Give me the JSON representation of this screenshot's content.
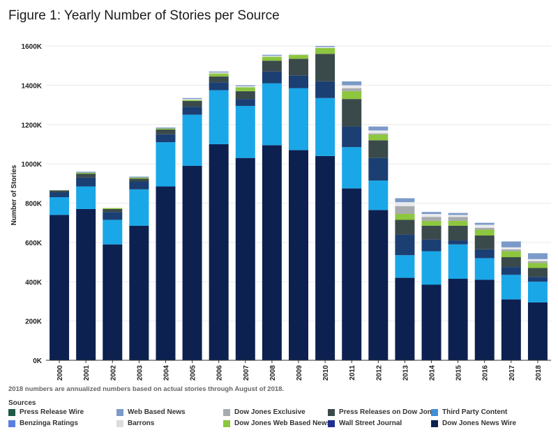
{
  "title": "Figure 1: Yearly Number of Stories per Source",
  "footnote": "2018 numbers are annualized numbers based on actual stories through August of 2018.",
  "legend_title": "Sources",
  "chart_data": {
    "type": "bar",
    "stacked": true,
    "title": "Figure 1: Yearly Number of Stories per Source",
    "xlabel": "",
    "ylabel": "Number of Stories",
    "ylim": [
      0,
      1600000
    ],
    "yticks": [
      0,
      200000,
      400000,
      600000,
      800000,
      1000000,
      1200000,
      1400000,
      1600000
    ],
    "ytick_labels": [
      "0K",
      "200K",
      "400K",
      "600K",
      "800K",
      "1000K",
      "1200K",
      "1400K",
      "1600K"
    ],
    "grid": true,
    "legend_position": "bottom",
    "categories": [
      "2000",
      "2001",
      "2002",
      "2003",
      "2004",
      "2005",
      "2006",
      "2007",
      "2008",
      "2009",
      "2010",
      "2011",
      "2012",
      "2013",
      "2014",
      "2015",
      "2016",
      "2017",
      "2018"
    ],
    "series": [
      {
        "name": "Dow Jones News Wire",
        "color": "#0d2150",
        "values": [
          740000,
          770000,
          590000,
          685000,
          885000,
          990000,
          1100000,
          1030000,
          1095000,
          1070000,
          1040000,
          875000,
          765000,
          420000,
          385000,
          415000,
          410000,
          310000,
          295000
        ]
      },
      {
        "name": "Third Party Content",
        "color": "#1aa7e8",
        "values": [
          90000,
          115000,
          125000,
          185000,
          225000,
          260000,
          275000,
          265000,
          315000,
          315000,
          295000,
          210000,
          150000,
          115000,
          170000,
          175000,
          110000,
          125000,
          105000
        ]
      },
      {
        "name": "Wall Street Journal",
        "color": "#1b3f73",
        "values": [
          25000,
          45000,
          40000,
          40000,
          40000,
          40000,
          40000,
          35000,
          60000,
          65000,
          85000,
          105000,
          115000,
          105000,
          60000,
          20000,
          45000,
          40000,
          25000
        ]
      },
      {
        "name": "Press Releases on Dow Jones",
        "color": "#3a4a4a",
        "values": [
          10000,
          20000,
          15000,
          15000,
          25000,
          30000,
          30000,
          40000,
          55000,
          85000,
          140000,
          140000,
          90000,
          75000,
          70000,
          75000,
          70000,
          50000,
          45000
        ]
      },
      {
        "name": "Dow Jones Web Based News",
        "color": "#8dc63f",
        "values": [
          0,
          5000,
          5000,
          5000,
          5000,
          5000,
          15000,
          20000,
          20000,
          20000,
          30000,
          40000,
          30000,
          30000,
          25000,
          25000,
          30000,
          30000,
          25000
        ]
      },
      {
        "name": "Dow Jones Exclusive",
        "color": "#a8abad",
        "values": [
          0,
          0,
          0,
          0,
          0,
          0,
          0,
          0,
          0,
          0,
          0,
          15000,
          5000,
          40000,
          20000,
          20000,
          10000,
          10000,
          10000
        ]
      },
      {
        "name": "Barrons",
        "color": "#e8eaec",
        "values": [
          0,
          0,
          0,
          0,
          0,
          5000,
          5000,
          5000,
          5000,
          5000,
          5000,
          15000,
          15000,
          20000,
          15000,
          10000,
          15000,
          10000,
          10000
        ]
      },
      {
        "name": "Web Based News",
        "color": "#7b9ac9",
        "values": [
          0,
          5000,
          0,
          5000,
          5000,
          5000,
          5000,
          5000,
          5000,
          0,
          5000,
          20000,
          20000,
          20000,
          10000,
          10000,
          10000,
          30000,
          30000
        ]
      },
      {
        "name": "Benzinga Ratings",
        "color": "#5b7fe0",
        "values": [
          0,
          0,
          0,
          0,
          0,
          0,
          0,
          0,
          0,
          0,
          0,
          0,
          0,
          0,
          0,
          0,
          0,
          0,
          0
        ]
      },
      {
        "name": "Press Release Wire",
        "color": "#1f5a48",
        "values": [
          0,
          0,
          0,
          0,
          0,
          0,
          0,
          0,
          0,
          0,
          0,
          0,
          0,
          0,
          0,
          0,
          0,
          0,
          0
        ]
      }
    ]
  },
  "legend_items": [
    {
      "label": "Press Release Wire",
      "color": "#1f5a48"
    },
    {
      "label": "Web Based News",
      "color": "#7b9ac9"
    },
    {
      "label": "Dow Jones Exclusive",
      "color": "#a8abad"
    },
    {
      "label": "Press Releases on Dow Jon..",
      "color": "#3a4a4a"
    },
    {
      "label": "Third Party Content",
      "color": "#3f8fd8"
    },
    {
      "label": "Benzinga Ratings",
      "color": "#5b7fe0"
    },
    {
      "label": "Barrons",
      "color": "#dcdcdc"
    },
    {
      "label": "Dow Jones Web Based News",
      "color": "#8dc63f"
    },
    {
      "label": "Wall Street Journal",
      "color": "#1e2f8f"
    },
    {
      "label": "Dow Jones News Wire",
      "color": "#0d2150"
    }
  ]
}
